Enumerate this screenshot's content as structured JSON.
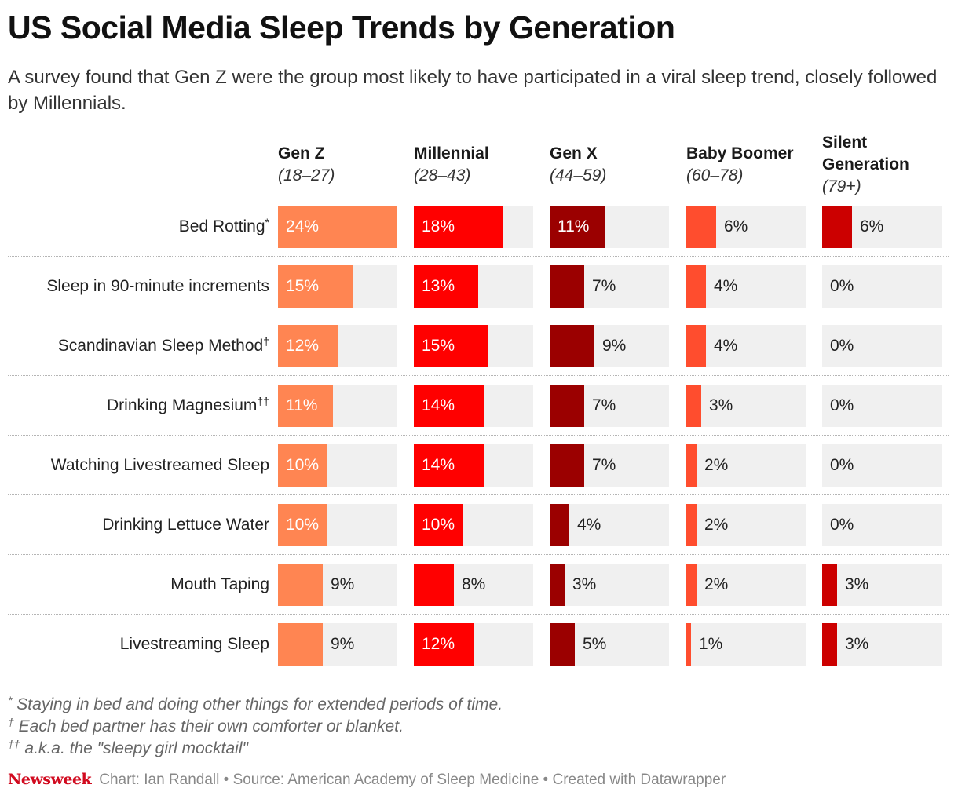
{
  "title": "US Social Media Sleep Trends by Generation",
  "subtitle": "A survey found that Gen Z were the group most likely to have participated in a viral sleep trend, closely followed by Millennials.",
  "notes": [
    {
      "mark": "*",
      "text": "Staying in bed and doing other things for extended periods of time."
    },
    {
      "mark": "†",
      "text": "Each bed partner has their own comforter or blanket."
    },
    {
      "mark": "††",
      "text": "a.k.a. the \"sleepy girl mocktail\""
    }
  ],
  "footer": {
    "brand": "Newsweek",
    "credit": "Chart: Ian Randall • Source: American Academy of Sleep Medicine • Created with Datawrapper"
  },
  "colors": {
    "gen_z": "#ff8552",
    "millennial": "#ff0000",
    "gen_x": "#9b0000",
    "baby_boomer": "#ff4d2e",
    "silent": "#cc0000",
    "track": "#f0f0f0"
  },
  "chart_data": {
    "type": "bar",
    "title": "US Social Media Sleep Trends by Generation",
    "value_suffix": "%",
    "xlim": [
      0,
      24
    ],
    "columns": [
      {
        "name": "Gen Z",
        "age": "(18–27)"
      },
      {
        "name": "Millennial",
        "age": "(28–43)"
      },
      {
        "name": "Gen X",
        "age": "(44–59)"
      },
      {
        "name": "Baby Boomer",
        "age": "(60–78)"
      },
      {
        "name": "Silent Generation",
        "age": "(79+)"
      }
    ],
    "categories": [
      {
        "label": "Bed Rotting",
        "mark": "*"
      },
      {
        "label": "Sleep in 90-minute increments",
        "mark": ""
      },
      {
        "label": "Scandinavian Sleep Method",
        "mark": "†"
      },
      {
        "label": "Drinking Magnesium",
        "mark": "††"
      },
      {
        "label": "Watching Livestreamed Sleep",
        "mark": ""
      },
      {
        "label": "Drinking Lettuce Water",
        "mark": ""
      },
      {
        "label": "Mouth Taping",
        "mark": ""
      },
      {
        "label": "Livestreaming Sleep",
        "mark": ""
      }
    ],
    "series": [
      {
        "name": "Gen Z",
        "values": [
          24,
          15,
          12,
          11,
          10,
          10,
          9,
          9
        ]
      },
      {
        "name": "Millennial",
        "values": [
          18,
          13,
          15,
          14,
          14,
          10,
          8,
          12
        ]
      },
      {
        "name": "Gen X",
        "values": [
          11,
          7,
          9,
          7,
          7,
          4,
          3,
          5
        ]
      },
      {
        "name": "Baby Boomer",
        "values": [
          6,
          4,
          4,
          3,
          2,
          2,
          2,
          1
        ]
      },
      {
        "name": "Silent Generation",
        "values": [
          6,
          0,
          0,
          0,
          0,
          0,
          3,
          3
        ]
      }
    ]
  }
}
